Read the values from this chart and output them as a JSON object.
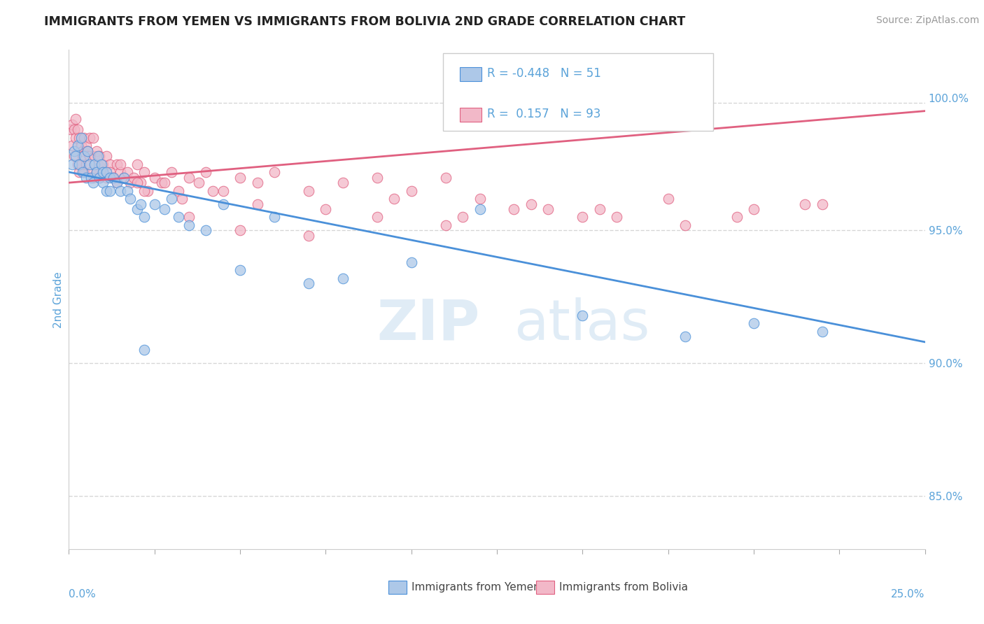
{
  "title": "IMMIGRANTS FROM YEMEN VS IMMIGRANTS FROM BOLIVIA 2ND GRADE CORRELATION CHART",
  "source": "Source: ZipAtlas.com",
  "ylabel": "2nd Grade",
  "xmin": 0.0,
  "xmax": 25.0,
  "ymin": 83.0,
  "ymax": 101.8,
  "yticks": [
    85.0,
    90.0,
    95.0,
    100.0
  ],
  "ytick_labels": [
    "85.0%",
    "90.0%",
    "95.0%",
    "100.0%"
  ],
  "r_yemen": -0.448,
  "n_yemen": 51,
  "r_bolivia": 0.157,
  "n_bolivia": 93,
  "color_yemen": "#adc8e8",
  "color_bolivia": "#f2b8c8",
  "line_color_yemen": "#4a90d9",
  "line_color_bolivia": "#e06080",
  "legend_label_yemen": "Immigrants from Yemen",
  "legend_label_bolivia": "Immigrants from Bolivia",
  "title_fontsize": 12.5,
  "source_fontsize": 10,
  "axis_label_color": "#5ba3d9",
  "background_color": "#ffffff",
  "yemen_trend_x0": 0.0,
  "yemen_trend_y0": 97.2,
  "yemen_trend_x1": 25.0,
  "yemen_trend_y1": 90.8,
  "bolivia_trend_x0": 0.0,
  "bolivia_trend_y0": 96.8,
  "bolivia_trend_x1": 25.0,
  "bolivia_trend_y1": 99.5,
  "bolivia_dash_x0": 5.0,
  "bolivia_dash_x1": 25.0,
  "dashed_y": 99.8,
  "yemen_x": [
    0.1,
    0.15,
    0.2,
    0.25,
    0.3,
    0.35,
    0.4,
    0.45,
    0.5,
    0.55,
    0.6,
    0.65,
    0.7,
    0.75,
    0.8,
    0.85,
    0.9,
    0.95,
    1.0,
    1.0,
    1.1,
    1.1,
    1.2,
    1.2,
    1.3,
    1.4,
    1.5,
    1.6,
    1.7,
    1.8,
    2.0,
    2.1,
    2.2,
    2.5,
    2.8,
    3.0,
    3.2,
    3.5,
    4.0,
    4.5,
    5.0,
    6.0,
    7.0,
    8.0,
    10.0,
    12.0,
    15.0,
    18.0,
    20.0,
    22.0,
    2.2
  ],
  "yemen_y": [
    97.5,
    98.0,
    97.8,
    98.2,
    97.5,
    98.5,
    97.2,
    97.8,
    97.0,
    98.0,
    97.5,
    97.0,
    96.8,
    97.5,
    97.2,
    97.8,
    97.0,
    97.5,
    97.2,
    96.8,
    96.5,
    97.2,
    97.0,
    96.5,
    97.0,
    96.8,
    96.5,
    97.0,
    96.5,
    96.2,
    95.8,
    96.0,
    95.5,
    96.0,
    95.8,
    96.2,
    95.5,
    95.2,
    95.0,
    96.0,
    93.5,
    95.5,
    93.0,
    93.2,
    93.8,
    95.8,
    91.8,
    91.0,
    91.5,
    91.2,
    90.5
  ],
  "bolivia_x": [
    0.05,
    0.1,
    0.1,
    0.15,
    0.15,
    0.2,
    0.2,
    0.25,
    0.25,
    0.3,
    0.3,
    0.35,
    0.35,
    0.4,
    0.4,
    0.45,
    0.45,
    0.5,
    0.5,
    0.55,
    0.6,
    0.6,
    0.65,
    0.7,
    0.7,
    0.75,
    0.8,
    0.8,
    0.85,
    0.9,
    0.9,
    1.0,
    1.0,
    1.1,
    1.1,
    1.2,
    1.2,
    1.3,
    1.4,
    1.4,
    1.5,
    1.5,
    1.6,
    1.7,
    1.8,
    1.9,
    2.0,
    2.1,
    2.2,
    2.3,
    2.5,
    2.7,
    3.0,
    3.2,
    3.5,
    3.8,
    4.0,
    4.5,
    5.0,
    5.5,
    6.0,
    7.0,
    8.0,
    9.0,
    10.0,
    11.0,
    12.0,
    14.0,
    16.0,
    18.0,
    20.0,
    22.0,
    2.2,
    2.8,
    3.3,
    4.2,
    5.5,
    7.5,
    9.5,
    11.5,
    13.5,
    15.5,
    17.5,
    19.5,
    21.5,
    2.0,
    3.5,
    5.0,
    7.0,
    9.0,
    11.0,
    13.0,
    15.0
  ],
  "bolivia_y": [
    98.8,
    99.0,
    98.2,
    98.8,
    97.8,
    99.2,
    98.5,
    98.8,
    97.5,
    98.5,
    97.2,
    98.2,
    97.5,
    98.0,
    97.8,
    98.5,
    97.2,
    98.2,
    97.5,
    98.0,
    97.8,
    98.5,
    97.2,
    98.5,
    97.0,
    97.8,
    98.0,
    97.2,
    97.5,
    97.8,
    97.0,
    97.5,
    97.2,
    97.8,
    97.0,
    97.5,
    97.2,
    97.0,
    97.5,
    96.8,
    97.2,
    97.5,
    97.0,
    97.2,
    96.8,
    97.0,
    97.5,
    96.8,
    97.2,
    96.5,
    97.0,
    96.8,
    97.2,
    96.5,
    97.0,
    96.8,
    97.2,
    96.5,
    97.0,
    96.8,
    97.2,
    96.5,
    96.8,
    97.0,
    96.5,
    97.0,
    96.2,
    95.8,
    95.5,
    95.2,
    95.8,
    96.0,
    96.5,
    96.8,
    96.2,
    96.5,
    96.0,
    95.8,
    96.2,
    95.5,
    96.0,
    95.8,
    96.2,
    95.5,
    96.0,
    96.8,
    95.5,
    95.0,
    94.8,
    95.5,
    95.2,
    95.8,
    95.5
  ]
}
